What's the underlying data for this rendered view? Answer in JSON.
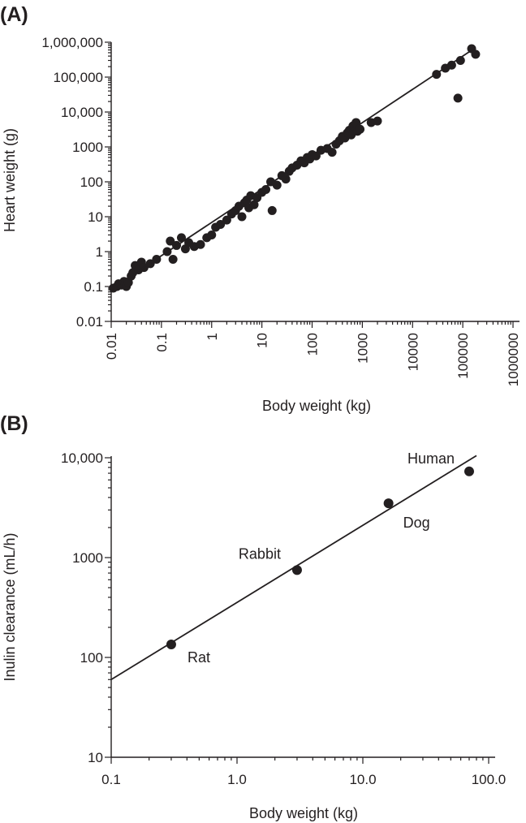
{
  "chart_data": [
    {
      "panel_label": "(A)",
      "type": "scatter",
      "title": "",
      "xlabel": "Body weight (kg)",
      "ylabel": "Heart weight (g)",
      "xscale": "log",
      "yscale": "log",
      "xlim": [
        0.01,
        1000000
      ],
      "ylim": [
        0.01,
        1000000
      ],
      "x_ticks": [
        "0.01",
        "0.1",
        "1",
        "10",
        "100",
        "1000",
        "10000",
        "100000",
        "1000000"
      ],
      "y_ticks": [
        "0.01",
        "0.1",
        "1",
        "10",
        "100",
        "1000",
        "10,000",
        "100,000",
        "1,000,000"
      ],
      "grid": false,
      "legend": "none",
      "fit_line": {
        "x": [
          0.01,
          180000
        ],
        "y": [
          0.085,
          700000
        ]
      },
      "points": [
        {
          "x": 0.011,
          "y": 0.09
        },
        {
          "x": 0.013,
          "y": 0.1
        },
        {
          "x": 0.014,
          "y": 0.12
        },
        {
          "x": 0.016,
          "y": 0.11
        },
        {
          "x": 0.018,
          "y": 0.14
        },
        {
          "x": 0.02,
          "y": 0.1
        },
        {
          "x": 0.022,
          "y": 0.13
        },
        {
          "x": 0.025,
          "y": 0.2
        },
        {
          "x": 0.027,
          "y": 0.25
        },
        {
          "x": 0.03,
          "y": 0.4
        },
        {
          "x": 0.035,
          "y": 0.3
        },
        {
          "x": 0.04,
          "y": 0.5
        },
        {
          "x": 0.045,
          "y": 0.35
        },
        {
          "x": 0.06,
          "y": 0.45
        },
        {
          "x": 0.08,
          "y": 0.6
        },
        {
          "x": 0.13,
          "y": 1
        },
        {
          "x": 0.15,
          "y": 2
        },
        {
          "x": 0.17,
          "y": 0.6
        },
        {
          "x": 0.2,
          "y": 1.5
        },
        {
          "x": 0.25,
          "y": 2.5
        },
        {
          "x": 0.3,
          "y": 1.2
        },
        {
          "x": 0.35,
          "y": 1.8
        },
        {
          "x": 0.45,
          "y": 1.4
        },
        {
          "x": 0.6,
          "y": 1.6
        },
        {
          "x": 0.8,
          "y": 2.5
        },
        {
          "x": 1.0,
          "y": 3
        },
        {
          "x": 1.2,
          "y": 5
        },
        {
          "x": 1.5,
          "y": 6
        },
        {
          "x": 2,
          "y": 8
        },
        {
          "x": 2.5,
          "y": 12
        },
        {
          "x": 3,
          "y": 15
        },
        {
          "x": 3.5,
          "y": 20
        },
        {
          "x": 4,
          "y": 10
        },
        {
          "x": 4.5,
          "y": 25
        },
        {
          "x": 5,
          "y": 30
        },
        {
          "x": 5.5,
          "y": 18
        },
        {
          "x": 6,
          "y": 40
        },
        {
          "x": 7,
          "y": 22
        },
        {
          "x": 8,
          "y": 35
        },
        {
          "x": 10,
          "y": 50
        },
        {
          "x": 12,
          "y": 60
        },
        {
          "x": 15,
          "y": 100
        },
        {
          "x": 16,
          "y": 15
        },
        {
          "x": 20,
          "y": 80
        },
        {
          "x": 25,
          "y": 150
        },
        {
          "x": 30,
          "y": 120
        },
        {
          "x": 35,
          "y": 200
        },
        {
          "x": 40,
          "y": 250
        },
        {
          "x": 50,
          "y": 300
        },
        {
          "x": 60,
          "y": 400
        },
        {
          "x": 70,
          "y": 350
        },
        {
          "x": 80,
          "y": 500
        },
        {
          "x": 90,
          "y": 450
        },
        {
          "x": 100,
          "y": 600
        },
        {
          "x": 120,
          "y": 550
        },
        {
          "x": 150,
          "y": 800
        },
        {
          "x": 200,
          "y": 900
        },
        {
          "x": 250,
          "y": 700
        },
        {
          "x": 300,
          "y": 1200
        },
        {
          "x": 350,
          "y": 1500
        },
        {
          "x": 400,
          "y": 2000
        },
        {
          "x": 450,
          "y": 1800
        },
        {
          "x": 500,
          "y": 2500
        },
        {
          "x": 550,
          "y": 3000
        },
        {
          "x": 600,
          "y": 2200
        },
        {
          "x": 650,
          "y": 4000
        },
        {
          "x": 700,
          "y": 3500
        },
        {
          "x": 750,
          "y": 5000
        },
        {
          "x": 800,
          "y": 2800
        },
        {
          "x": 900,
          "y": 3200
        },
        {
          "x": 1500,
          "y": 5000
        },
        {
          "x": 2000,
          "y": 5500
        },
        {
          "x": 80000,
          "y": 25000
        },
        {
          "x": 30000,
          "y": 120000
        },
        {
          "x": 45000,
          "y": 180000
        },
        {
          "x": 60000,
          "y": 220000
        },
        {
          "x": 90000,
          "y": 300000
        },
        {
          "x": 150000,
          "y": 650000
        },
        {
          "x": 180000,
          "y": 450000
        }
      ]
    },
    {
      "panel_label": "(B)",
      "type": "scatter",
      "title": "",
      "xlabel": "Body weight (kg)",
      "ylabel": "Inulin clearance (mL/h)",
      "xscale": "log",
      "yscale": "log",
      "xlim": [
        0.1,
        100
      ],
      "ylim": [
        10,
        10000
      ],
      "x_ticks": [
        "0.1",
        "1.0",
        "10.0",
        "100.0"
      ],
      "y_ticks": [
        "10",
        "100",
        "1000",
        "10,000"
      ],
      "grid": false,
      "legend": "none",
      "fit_line": {
        "x": [
          0.1,
          80
        ],
        "y": [
          60,
          10500
        ]
      },
      "points": [
        {
          "name": "Rat",
          "x": 0.3,
          "y": 135
        },
        {
          "name": "Rabbit",
          "x": 3.0,
          "y": 750
        },
        {
          "name": "Dog",
          "x": 16,
          "y": 3500
        },
        {
          "name": "Human",
          "x": 70,
          "y": 7300
        }
      ]
    }
  ]
}
